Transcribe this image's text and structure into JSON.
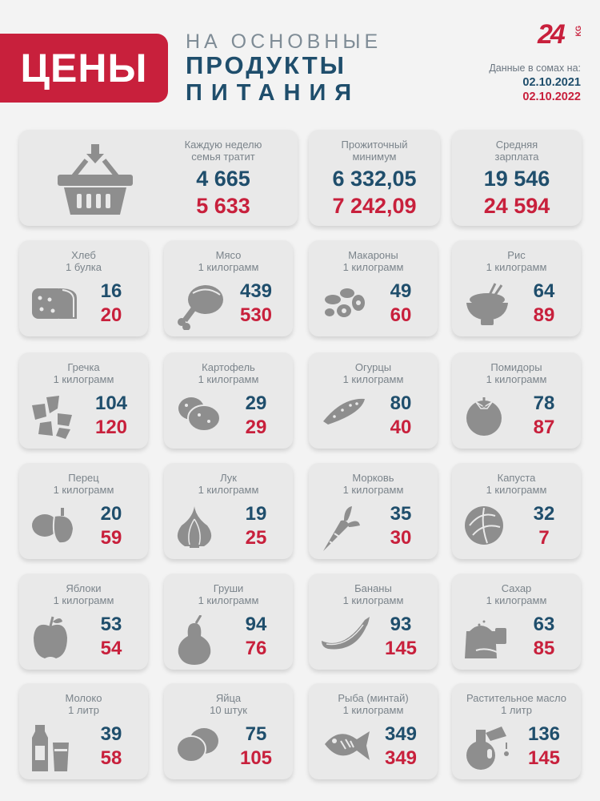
{
  "header": {
    "badge": "ЦЕНЫ",
    "line1": "НА ОСНОВНЫЕ",
    "line2": "ПРОДУКТЫ",
    "line3": "ПИТАНИЯ",
    "logo_num": "24",
    "logo_suffix": "KG",
    "dates_caption": "Данные в сомах на:",
    "date_old": "02.10.2021",
    "date_new": "02.10.2022"
  },
  "colors": {
    "accent_red": "#c8203c",
    "accent_blue": "#1f4e6c",
    "icon_gray": "#8e8e8e"
  },
  "summary": [
    {
      "label1": "Каждую неделю",
      "label2": "семья тратит",
      "old": "4 665",
      "new": "5 633",
      "icon": "basket-icon"
    },
    {
      "label1": "Прожиточный",
      "label2": "минимум",
      "old": "6 332,05",
      "new": "7 242,09"
    },
    {
      "label1": "Средняя",
      "label2": "зарплата",
      "old": "19 546",
      "new": "24 594"
    }
  ],
  "products": [
    {
      "name": "Хлеб",
      "unit": "1 булка",
      "old": "16",
      "new": "20",
      "icon": "bread-icon"
    },
    {
      "name": "Мясо",
      "unit": "1 килограмм",
      "old": "439",
      "new": "530",
      "icon": "meat-icon"
    },
    {
      "name": "Макароны",
      "unit": "1 килограмм",
      "old": "49",
      "new": "60",
      "icon": "pasta-icon"
    },
    {
      "name": "Рис",
      "unit": "1 килограмм",
      "old": "64",
      "new": "89",
      "icon": "rice-bowl-icon"
    },
    {
      "name": "Гречка",
      "unit": "1 килограмм",
      "old": "104",
      "new": "120",
      "icon": "buckwheat-icon"
    },
    {
      "name": "Картофель",
      "unit": "1 килограмм",
      "old": "29",
      "new": "29",
      "icon": "potato-icon"
    },
    {
      "name": "Огурцы",
      "unit": "1 килограмм",
      "old": "80",
      "new": "40",
      "icon": "cucumber-icon"
    },
    {
      "name": "Помидоры",
      "unit": "1 килограмм",
      "old": "78",
      "new": "87",
      "icon": "tomato-icon"
    },
    {
      "name": "Перец",
      "unit": "1 килограмм",
      "old": "20",
      "new": "59",
      "icon": "pepper-icon"
    },
    {
      "name": "Лук",
      "unit": "1 килограмм",
      "old": "19",
      "new": "25",
      "icon": "onion-icon"
    },
    {
      "name": "Морковь",
      "unit": "1 килограмм",
      "old": "35",
      "new": "30",
      "icon": "carrot-icon"
    },
    {
      "name": "Капуста",
      "unit": "1 килограмм",
      "old": "32",
      "new": "7",
      "icon": "cabbage-icon"
    },
    {
      "name": "Яблоки",
      "unit": "1 килограмм",
      "old": "53",
      "new": "54",
      "icon": "apple-icon"
    },
    {
      "name": "Груши",
      "unit": "1 килограмм",
      "old": "94",
      "new": "76",
      "icon": "pear-icon"
    },
    {
      "name": "Бананы",
      "unit": "1 килограмм",
      "old": "93",
      "new": "145",
      "icon": "banana-icon"
    },
    {
      "name": "Сахар",
      "unit": "1 килограмм",
      "old": "63",
      "new": "85",
      "icon": "sugar-icon"
    },
    {
      "name": "Молоко",
      "unit": "1 литр",
      "old": "39",
      "new": "58",
      "icon": "milk-icon"
    },
    {
      "name": "Яйца",
      "unit": "10 штук",
      "old": "75",
      "new": "105",
      "icon": "eggs-icon"
    },
    {
      "name": "Рыба (минтай)",
      "unit": "1 килограмм",
      "old": "349",
      "new": "349",
      "icon": "fish-icon"
    },
    {
      "name": "Растительное масло",
      "unit": "1 литр",
      "old": "136",
      "new": "145",
      "icon": "oil-icon"
    }
  ]
}
